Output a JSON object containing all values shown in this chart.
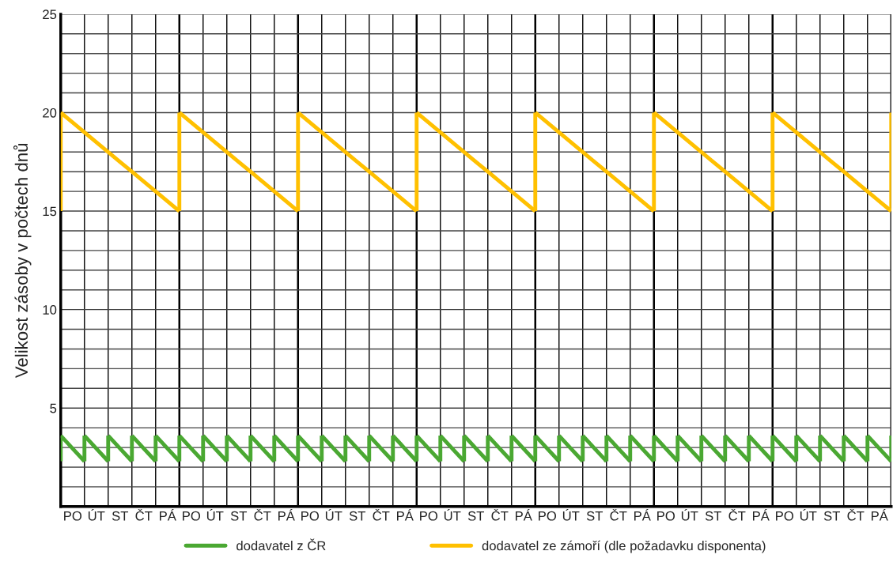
{
  "chart_data": {
    "type": "line",
    "ylabel": "Velikost zásoby v počtech dnů",
    "categories": [
      null,
      "PO",
      null,
      "ÚT",
      null,
      "ST",
      null,
      "ČT",
      null,
      "PÁ",
      null,
      "PO",
      null,
      "ÚT",
      null,
      "ST",
      null,
      "ČT",
      null,
      "PÁ",
      null,
      "PO",
      null,
      "ÚT",
      null,
      "ST",
      null,
      "ČT",
      null,
      "PÁ",
      null,
      "PO",
      null,
      "ÚT",
      null,
      "ST",
      null,
      "ČT",
      null,
      "PÁ",
      null,
      "PO",
      null,
      "ÚT",
      null,
      "ST",
      null,
      "ČT",
      null,
      "PÁ",
      null,
      "PO",
      null,
      "ÚT",
      null,
      "ST",
      null,
      "ČT",
      null,
      "PÁ",
      null,
      "PO",
      null,
      "ÚT",
      null,
      "ST",
      null,
      "ČT",
      null,
      "PÁ",
      null
    ],
    "ylim": [
      0,
      25
    ],
    "yticks": [
      {
        "value": 0,
        "label": null
      },
      {
        "value": 1,
        "label": null
      },
      {
        "value": 2,
        "label": null
      },
      {
        "value": 3,
        "label": null
      },
      {
        "value": 4,
        "label": null
      },
      5,
      {
        "value": 6,
        "label": null
      },
      {
        "value": 7,
        "label": null
      },
      {
        "value": 8,
        "label": null
      },
      {
        "value": 9,
        "label": null
      },
      10,
      {
        "value": 11,
        "label": null
      },
      {
        "value": 12,
        "label": null
      },
      {
        "value": 13,
        "label": null
      },
      {
        "value": 14,
        "label": null
      },
      15,
      {
        "value": 16,
        "label": null
      },
      {
        "value": 17,
        "label": null
      },
      {
        "value": 18,
        "label": null
      },
      {
        "value": 19,
        "label": null
      },
      20,
      {
        "value": 21,
        "label": null
      },
      {
        "value": 22,
        "label": null
      },
      {
        "value": 23,
        "label": null
      },
      {
        "value": 24,
        "label": null
      },
      25
    ],
    "series": [
      {
        "name": "dodavatel z ČR",
        "color": "#4aa832",
        "values": [
          3.6,
          2.95,
          2.3,
          null,
          3.6,
          2.95,
          2.3,
          null,
          3.6,
          2.95,
          2.3,
          null,
          3.6,
          2.95,
          2.3,
          null,
          3.6,
          2.95,
          2.3,
          null,
          3.6,
          2.95,
          2.3,
          null,
          3.6,
          2.95,
          2.3,
          null,
          3.6,
          2.95,
          2.3,
          null,
          3.6,
          2.95,
          2.3,
          null,
          3.6,
          2.95,
          2.3,
          null,
          3.6,
          2.95,
          2.3,
          null,
          3.6,
          2.95,
          2.3,
          null,
          3.6,
          2.95,
          2.3,
          null,
          3.6,
          2.95,
          2.3,
          null,
          3.6,
          2.95,
          2.3,
          null,
          3.6,
          2.95,
          2.3,
          null,
          3.6,
          2.95,
          2.3,
          null,
          3.6,
          2.95,
          2.3
        ],
        "errors": [
          [
            2.3,
            3.6
          ],
          null,
          null,
          null,
          [
            2.3,
            3.6
          ],
          null,
          null,
          null,
          [
            2.3,
            3.6
          ],
          null,
          null,
          null,
          [
            2.3,
            3.6
          ],
          null,
          null,
          null,
          [
            2.3,
            3.6
          ],
          null,
          null,
          null,
          [
            2.3,
            3.6
          ],
          null,
          null,
          null,
          [
            2.3,
            3.6
          ],
          null,
          null,
          null,
          [
            2.3,
            3.6
          ],
          null,
          null,
          null,
          [
            2.3,
            3.6
          ],
          null,
          null,
          null,
          [
            2.3,
            3.6
          ],
          null,
          null,
          null,
          [
            2.3,
            3.6
          ],
          null,
          null,
          null,
          [
            2.3,
            3.6
          ],
          null,
          null,
          null,
          [
            2.3,
            3.6
          ],
          null,
          null,
          null,
          [
            2.3,
            3.6
          ],
          null,
          null,
          null,
          [
            2.3,
            3.6
          ],
          null,
          null,
          null,
          [
            2.3,
            3.6
          ],
          null,
          null,
          null,
          [
            2.3,
            3.6
          ],
          null,
          null,
          null,
          [
            2.3,
            3.6
          ],
          null,
          [
            2.3,
            3.6
          ]
        ]
      },
      {
        "color": "#4aa832",
        "values": [
          null,
          null,
          3.6,
          2.95,
          2.3,
          null,
          3.6,
          2.95,
          2.3,
          null,
          3.6,
          2.95,
          2.3,
          null,
          3.6,
          2.95,
          2.3,
          null,
          3.6,
          2.95,
          2.3,
          null,
          3.6,
          2.95,
          2.3,
          null,
          3.6,
          2.95,
          2.3,
          null,
          3.6,
          2.95,
          2.3,
          null,
          3.6,
          2.95,
          2.3,
          null,
          3.6,
          2.95,
          2.3,
          null,
          3.6,
          2.95,
          2.3,
          null,
          3.6,
          2.95,
          2.3,
          null,
          3.6,
          2.95,
          2.3,
          null,
          3.6,
          2.95,
          2.3,
          null,
          3.6,
          2.95,
          2.3,
          null,
          3.6,
          2.95,
          2.3,
          null,
          3.6,
          2.95,
          2.3,
          null,
          null
        ],
        "errors": [
          null,
          null,
          [
            2.3,
            3.6
          ],
          null,
          null,
          null,
          [
            2.3,
            3.6
          ],
          null,
          null,
          null,
          [
            2.3,
            3.6
          ],
          null,
          null,
          null,
          [
            2.3,
            3.6
          ],
          null,
          null,
          null,
          [
            2.3,
            3.6
          ],
          null,
          null,
          null,
          [
            2.3,
            3.6
          ],
          null,
          null,
          null,
          [
            2.3,
            3.6
          ],
          null,
          null,
          null,
          [
            2.3,
            3.6
          ],
          null,
          null,
          null,
          [
            2.3,
            3.6
          ],
          null,
          null,
          null,
          [
            2.3,
            3.6
          ],
          null,
          null,
          null,
          [
            2.3,
            3.6
          ],
          null,
          null,
          null,
          [
            2.3,
            3.6
          ],
          null,
          null,
          null,
          [
            2.3,
            3.6
          ],
          null,
          null,
          null,
          [
            2.3,
            3.6
          ],
          null,
          null,
          null,
          [
            2.3,
            3.6
          ],
          null,
          null,
          null,
          [
            2.3,
            3.6
          ],
          null,
          null,
          null,
          [
            2.3,
            3.6
          ],
          null,
          null,
          null,
          null
        ]
      },
      {
        "name": "dodavatel ze zámoří (dle požadavku disponenta)",
        "color": "#ffc000",
        "values": [
          20,
          19.5,
          19,
          18.5,
          18,
          17.5,
          17,
          16.5,
          16,
          15.5,
          15,
          null,
          null,
          null,
          null,
          null,
          null,
          null,
          null,
          null,
          20,
          19.5,
          19,
          18.5,
          18,
          17.5,
          17,
          16.5,
          16,
          15.5,
          15,
          null,
          null,
          null,
          null,
          null,
          null,
          null,
          null,
          null,
          20,
          19.5,
          19,
          18.5,
          18,
          17.5,
          17,
          16.5,
          16,
          15.5,
          15,
          null,
          null,
          null,
          null,
          null,
          null,
          null,
          null,
          null,
          20,
          19.5,
          19,
          18.5,
          18,
          17.5,
          17,
          16.5,
          16,
          15.5,
          15
        ],
        "errors": [
          [
            15,
            20
          ],
          null,
          null,
          null,
          null,
          null,
          null,
          null,
          null,
          null,
          null,
          null,
          null,
          null,
          null,
          null,
          null,
          null,
          null,
          null,
          [
            15,
            20
          ],
          null,
          null,
          null,
          null,
          null,
          null,
          null,
          null,
          null,
          null,
          null,
          null,
          null,
          null,
          null,
          null,
          null,
          null,
          null,
          [
            15,
            20
          ],
          null,
          null,
          null,
          null,
          null,
          null,
          null,
          null,
          null,
          null,
          null,
          null,
          null,
          null,
          null,
          null,
          null,
          null,
          null,
          [
            15,
            20
          ],
          null,
          null,
          null,
          null,
          null,
          null,
          null,
          null,
          null,
          [
            15,
            20
          ]
        ]
      },
      {
        "color": "#ffc000",
        "values": [
          null,
          null,
          null,
          null,
          null,
          null,
          null,
          null,
          null,
          null,
          20,
          19.5,
          19,
          18.5,
          18,
          17.5,
          17,
          16.5,
          16,
          15.5,
          15,
          null,
          null,
          null,
          null,
          null,
          null,
          null,
          null,
          null,
          20,
          19.5,
          19,
          18.5,
          18,
          17.5,
          17,
          16.5,
          16,
          15.5,
          15,
          null,
          null,
          null,
          null,
          null,
          null,
          null,
          null,
          null,
          20,
          19.5,
          19,
          18.5,
          18,
          17.5,
          17,
          16.5,
          16,
          15.5,
          15,
          null,
          null,
          null,
          null,
          null,
          null,
          null,
          null,
          null,
          null
        ],
        "errors": [
          null,
          null,
          null,
          null,
          null,
          null,
          null,
          null,
          null,
          null,
          [
            15,
            20
          ],
          null,
          null,
          null,
          null,
          null,
          null,
          null,
          null,
          null,
          null,
          null,
          null,
          null,
          null,
          null,
          null,
          null,
          null,
          null,
          [
            15,
            20
          ],
          null,
          null,
          null,
          null,
          null,
          null,
          null,
          null,
          null,
          null,
          null,
          null,
          null,
          null,
          null,
          null,
          null,
          null,
          null,
          [
            15,
            20
          ],
          null,
          null,
          null,
          null,
          null,
          null,
          null,
          null,
          null,
          null,
          null,
          null,
          null,
          null,
          null,
          null,
          null,
          null,
          null,
          null
        ]
      }
    ],
    "grid": true,
    "legend": "bottom",
    "marker": "none",
    "line_style": "solid"
  }
}
